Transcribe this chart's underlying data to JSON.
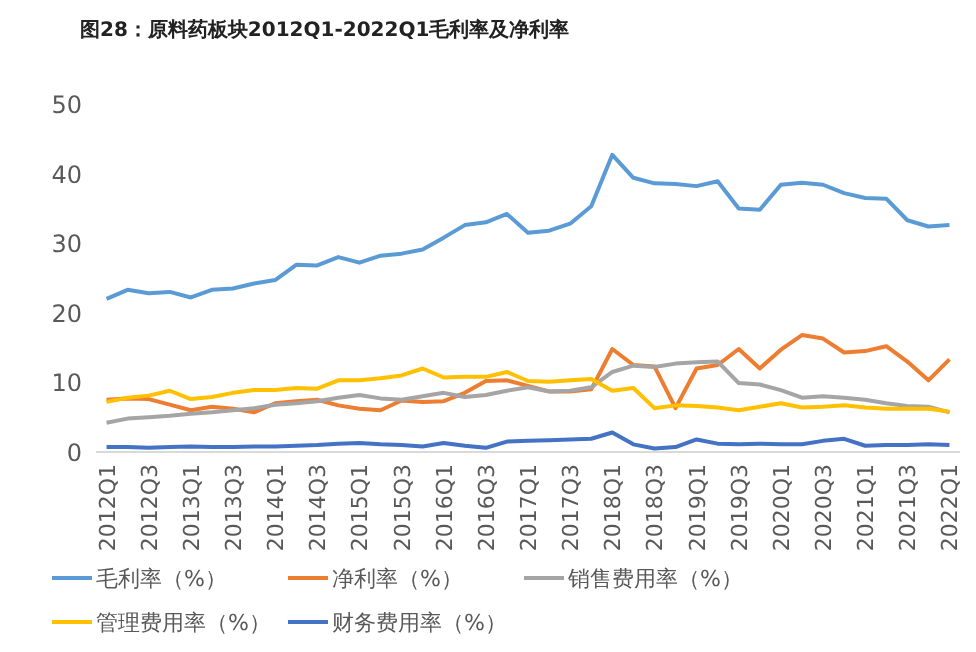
{
  "chart_data": {
    "type": "line",
    "title": "图28：原料药板块2012Q1-2022Q1毛利率及净利率",
    "categories": [
      "2012Q1",
      null,
      "2012Q3",
      null,
      "2013Q1",
      null,
      "2013Q3",
      null,
      "2014Q1",
      null,
      "2014Q3",
      null,
      "2015Q1",
      null,
      "2015Q3",
      null,
      "2016Q1",
      null,
      "2016Q3",
      null,
      "2017Q1",
      null,
      "2017Q3",
      null,
      "2018Q1",
      null,
      "2018Q3",
      null,
      "2019Q1",
      null,
      "2019Q3",
      null,
      "2020Q1",
      null,
      "2020Q3",
      null,
      "2021Q1",
      null,
      "2021Q3",
      null,
      "2022Q1"
    ],
    "ylim": [
      0,
      50
    ],
    "yticks": [
      0,
      10,
      20,
      30,
      40,
      50
    ],
    "grid": false,
    "legend": "bottom",
    "marker": "none",
    "line_style": "solid",
    "series": [
      {
        "name": "毛利率（%）",
        "color": "#5b9bd5",
        "values": [
          22,
          23.3,
          22.8,
          23,
          22.2,
          23.3,
          23.5,
          24.2,
          24.7,
          26.9,
          26.8,
          28,
          27.2,
          28.2,
          28.5,
          29.1,
          30.8,
          32.6,
          33,
          34.2,
          31.5,
          31.8,
          32.8,
          35.3,
          42.7,
          39.4,
          38.6,
          38.5,
          38.2,
          38.9,
          35,
          34.8,
          38.4,
          38.7,
          38.4,
          37.2,
          36.5,
          36.4,
          33.3,
          32.4,
          32.6
        ]
      },
      {
        "name": "净利率（%）",
        "color": "#ed7d31",
        "values": [
          7.5,
          7.7,
          7.6,
          6.8,
          6,
          6.5,
          6.2,
          5.7,
          7,
          7.3,
          7.5,
          6.7,
          6.2,
          6,
          7.4,
          7.2,
          7.3,
          8.5,
          10.2,
          10.3,
          9.5,
          8.7,
          8.7,
          9,
          14.8,
          12.5,
          12.3,
          6.3,
          12,
          12.5,
          14.8,
          12,
          14.7,
          16.8,
          16.3,
          14.3,
          14.5,
          15.2,
          13,
          10.3,
          13.3
        ]
      },
      {
        "name": "销售费用率（%）",
        "color": "#a5a5a5",
        "values": [
          4.2,
          4.8,
          5,
          5.2,
          5.5,
          5.7,
          6,
          6.3,
          6.8,
          7,
          7.3,
          7.8,
          8.2,
          7.7,
          7.5,
          8,
          8.5,
          7.9,
          8.2,
          8.8,
          9.3,
          8.7,
          8.8,
          9.3,
          11.5,
          12.4,
          12.2,
          12.7,
          12.9,
          13,
          9.9,
          9.7,
          8.9,
          7.8,
          8,
          7.8,
          7.5,
          7,
          6.6,
          6.5,
          5.7
        ]
      },
      {
        "name": "管理费用率（%）",
        "color": "#ffc000",
        "values": [
          7.2,
          7.8,
          8.1,
          8.8,
          7.6,
          7.9,
          8.5,
          8.9,
          8.9,
          9.2,
          9.1,
          10.3,
          10.3,
          10.6,
          11,
          12,
          10.7,
          10.8,
          10.8,
          11.5,
          10.2,
          10.1,
          10.3,
          10.5,
          8.8,
          9.2,
          6.3,
          6.7,
          6.6,
          6.4,
          6,
          6.5,
          7,
          6.4,
          6.5,
          6.7,
          6.4,
          6.2,
          6.2,
          6.2,
          5.8
        ]
      },
      {
        "name": "财务费用率（%）",
        "color": "#4472c4",
        "values": [
          0.7,
          0.7,
          0.6,
          0.7,
          0.8,
          0.7,
          0.7,
          0.8,
          0.8,
          0.9,
          1,
          1.2,
          1.3,
          1.1,
          1,
          0.8,
          1.3,
          0.9,
          0.6,
          1.5,
          1.6,
          1.7,
          1.8,
          1.9,
          2.8,
          1.1,
          0.5,
          0.7,
          1.8,
          1.2,
          1.1,
          1.2,
          1.1,
          1.1,
          1.6,
          1.9,
          0.9,
          1,
          1,
          1.1,
          1
        ]
      }
    ]
  }
}
